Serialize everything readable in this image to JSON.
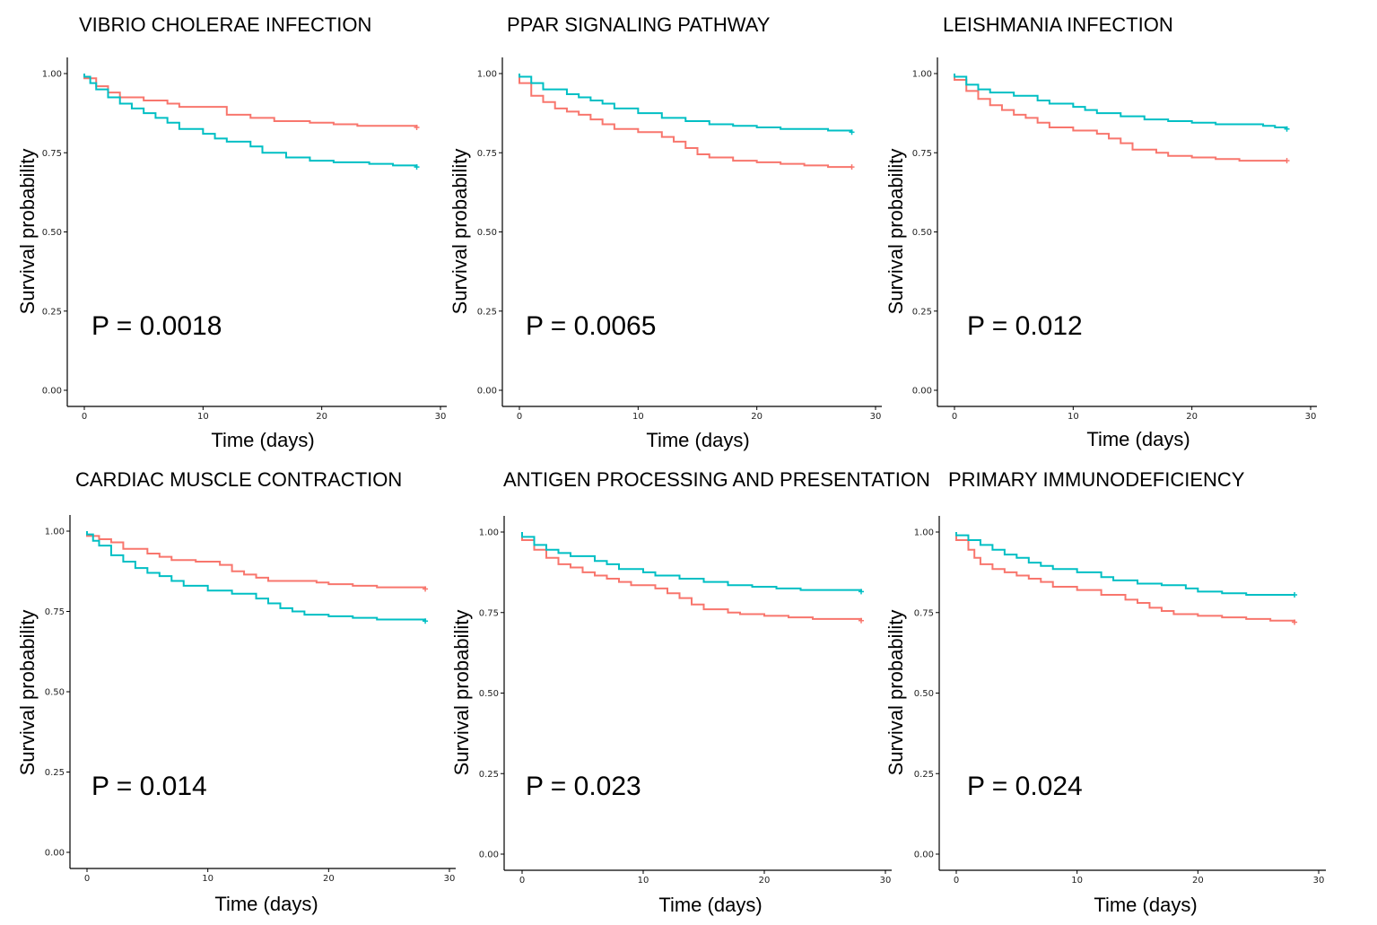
{
  "colors": {
    "red_group": "#F8766D",
    "cyan_group": "#00BFC4"
  },
  "chart_data": [
    {
      "type": "line",
      "title": "VIBRIO CHOLERAE INFECTION",
      "xlabel": "Time (days)",
      "ylabel": "Survival probability",
      "xlim": [
        0,
        30
      ],
      "ylim": [
        0,
        1
      ],
      "xticks": [
        "0",
        "10",
        "20",
        "30"
      ],
      "yticks": [
        "0.00",
        "0.25",
        "0.50",
        "0.75",
        "1.00"
      ],
      "annotation": "P = 0.0018",
      "series": [
        {
          "name": "red",
          "color": "#F8766D",
          "end": 28,
          "points": [
            [
              0,
              0.985
            ],
            [
              1,
              0.96
            ],
            [
              2,
              0.94
            ],
            [
              3,
              0.925
            ],
            [
              5,
              0.915
            ],
            [
              7,
              0.905
            ],
            [
              8,
              0.895
            ],
            [
              12,
              0.87
            ],
            [
              14,
              0.86
            ],
            [
              16,
              0.85
            ],
            [
              19,
              0.845
            ],
            [
              21,
              0.84
            ],
            [
              23,
              0.835
            ],
            [
              28,
              0.83
            ]
          ]
        },
        {
          "name": "cyan",
          "color": "#00BFC4",
          "end": 28,
          "points": [
            [
              0,
              0.99
            ],
            [
              0.5,
              0.97
            ],
            [
              1,
              0.95
            ],
            [
              2,
              0.925
            ],
            [
              3,
              0.905
            ],
            [
              4,
              0.89
            ],
            [
              5,
              0.875
            ],
            [
              6,
              0.86
            ],
            [
              7,
              0.845
            ],
            [
              8,
              0.825
            ],
            [
              10,
              0.81
            ],
            [
              11,
              0.795
            ],
            [
              12,
              0.785
            ],
            [
              14,
              0.77
            ],
            [
              15,
              0.75
            ],
            [
              17,
              0.735
            ],
            [
              19,
              0.725
            ],
            [
              21,
              0.72
            ],
            [
              24,
              0.715
            ],
            [
              26,
              0.71
            ],
            [
              28,
              0.705
            ]
          ]
        }
      ]
    },
    {
      "type": "line",
      "title": "PPAR SIGNALING PATHWAY",
      "xlabel": "Time (days)",
      "ylabel": "Survival probability",
      "xlim": [
        0,
        30
      ],
      "ylim": [
        0,
        1
      ],
      "xticks": [
        "0",
        "10",
        "20",
        "30"
      ],
      "yticks": [
        "0.00",
        "0.25",
        "0.50",
        "0.75",
        "1.00"
      ],
      "annotation": "P = 0.0065",
      "series": [
        {
          "name": "red",
          "color": "#F8766D",
          "end": 28,
          "points": [
            [
              0,
              0.97
            ],
            [
              1,
              0.93
            ],
            [
              2,
              0.91
            ],
            [
              3,
              0.89
            ],
            [
              4,
              0.88
            ],
            [
              5,
              0.87
            ],
            [
              6,
              0.855
            ],
            [
              7,
              0.84
            ],
            [
              8,
              0.825
            ],
            [
              10,
              0.815
            ],
            [
              12,
              0.8
            ],
            [
              13,
              0.785
            ],
            [
              14,
              0.765
            ],
            [
              15,
              0.745
            ],
            [
              16,
              0.735
            ],
            [
              18,
              0.725
            ],
            [
              20,
              0.72
            ],
            [
              22,
              0.715
            ],
            [
              24,
              0.71
            ],
            [
              26,
              0.705
            ],
            [
              28,
              0.705
            ]
          ]
        },
        {
          "name": "cyan",
          "color": "#00BFC4",
          "end": 28,
          "points": [
            [
              0,
              0.99
            ],
            [
              1,
              0.97
            ],
            [
              2,
              0.95
            ],
            [
              4,
              0.935
            ],
            [
              5,
              0.925
            ],
            [
              6,
              0.915
            ],
            [
              7,
              0.905
            ],
            [
              8,
              0.89
            ],
            [
              10,
              0.875
            ],
            [
              12,
              0.86
            ],
            [
              14,
              0.85
            ],
            [
              16,
              0.84
            ],
            [
              18,
              0.835
            ],
            [
              20,
              0.83
            ],
            [
              22,
              0.825
            ],
            [
              26,
              0.82
            ],
            [
              28,
              0.815
            ]
          ]
        }
      ]
    },
    {
      "type": "line",
      "title": "LEISHMANIA INFECTION",
      "xlabel": "Time (days)",
      "ylabel": "Survival probability",
      "xlim": [
        0,
        30
      ],
      "ylim": [
        0,
        1
      ],
      "xticks": [
        "0",
        "10",
        "20",
        "30"
      ],
      "yticks": [
        "0.00",
        "0.25",
        "0.50",
        "0.75",
        "1.00"
      ],
      "annotation": "P = 0.012",
      "series": [
        {
          "name": "red",
          "color": "#F8766D",
          "end": 28,
          "points": [
            [
              0,
              0.98
            ],
            [
              1,
              0.945
            ],
            [
              2,
              0.92
            ],
            [
              3,
              0.9
            ],
            [
              4,
              0.885
            ],
            [
              5,
              0.87
            ],
            [
              6,
              0.86
            ],
            [
              7,
              0.845
            ],
            [
              8,
              0.83
            ],
            [
              10,
              0.82
            ],
            [
              12,
              0.81
            ],
            [
              13,
              0.795
            ],
            [
              14,
              0.78
            ],
            [
              15,
              0.76
            ],
            [
              17,
              0.75
            ],
            [
              18,
              0.74
            ],
            [
              20,
              0.735
            ],
            [
              22,
              0.73
            ],
            [
              24,
              0.725
            ],
            [
              28,
              0.725
            ]
          ]
        },
        {
          "name": "cyan",
          "color": "#00BFC4",
          "end": 28,
          "points": [
            [
              0,
              0.99
            ],
            [
              1,
              0.965
            ],
            [
              2,
              0.95
            ],
            [
              3,
              0.94
            ],
            [
              5,
              0.93
            ],
            [
              7,
              0.915
            ],
            [
              8,
              0.905
            ],
            [
              10,
              0.895
            ],
            [
              11,
              0.885
            ],
            [
              12,
              0.875
            ],
            [
              14,
              0.865
            ],
            [
              16,
              0.855
            ],
            [
              18,
              0.85
            ],
            [
              20,
              0.845
            ],
            [
              22,
              0.84
            ],
            [
              26,
              0.835
            ],
            [
              27,
              0.83
            ],
            [
              28,
              0.825
            ]
          ]
        }
      ]
    },
    {
      "type": "line",
      "title": "CARDIAC MUSCLE CONTRACTION",
      "xlabel": "Time (days)",
      "ylabel": "Survival probability",
      "xlim": [
        0,
        30
      ],
      "ylim": [
        0,
        1
      ],
      "xticks": [
        "0",
        "10",
        "20",
        "30"
      ],
      "yticks": [
        "0.00",
        "0.25",
        "0.50",
        "0.75",
        "1.00"
      ],
      "annotation": "P = 0.014",
      "series": [
        {
          "name": "red",
          "color": "#F8766D",
          "end": 28,
          "points": [
            [
              0,
              0.985
            ],
            [
              1,
              0.975
            ],
            [
              2,
              0.965
            ],
            [
              3,
              0.945
            ],
            [
              5,
              0.93
            ],
            [
              6,
              0.92
            ],
            [
              7,
              0.91
            ],
            [
              9,
              0.905
            ],
            [
              11,
              0.895
            ],
            [
              12,
              0.875
            ],
            [
              13,
              0.865
            ],
            [
              14,
              0.855
            ],
            [
              15,
              0.845
            ],
            [
              17,
              0.845
            ],
            [
              19,
              0.84
            ],
            [
              20,
              0.835
            ],
            [
              22,
              0.83
            ],
            [
              24,
              0.825
            ],
            [
              28,
              0.82
            ]
          ]
        },
        {
          "name": "cyan",
          "color": "#00BFC4",
          "end": 28,
          "points": [
            [
              0,
              0.99
            ],
            [
              0.5,
              0.97
            ],
            [
              1,
              0.955
            ],
            [
              2,
              0.925
            ],
            [
              3,
              0.905
            ],
            [
              4,
              0.885
            ],
            [
              5,
              0.87
            ],
            [
              6,
              0.86
            ],
            [
              7,
              0.845
            ],
            [
              8,
              0.83
            ],
            [
              10,
              0.815
            ],
            [
              12,
              0.805
            ],
            [
              14,
              0.79
            ],
            [
              15,
              0.775
            ],
            [
              16,
              0.76
            ],
            [
              17,
              0.75
            ],
            [
              18,
              0.74
            ],
            [
              20,
              0.735
            ],
            [
              22,
              0.73
            ],
            [
              24,
              0.725
            ],
            [
              28,
              0.72
            ]
          ]
        }
      ]
    },
    {
      "type": "line",
      "title": "ANTIGEN PROCESSING AND PRESENTATION",
      "xlabel": "Time (days)",
      "ylabel": "Survival probability",
      "xlim": [
        0,
        30
      ],
      "ylim": [
        0,
        1
      ],
      "xticks": [
        "0",
        "10",
        "20",
        "30"
      ],
      "yticks": [
        "0.00",
        "0.25",
        "0.50",
        "0.75",
        "1.00"
      ],
      "annotation": "P = 0.023",
      "series": [
        {
          "name": "red",
          "color": "#F8766D",
          "end": 28,
          "points": [
            [
              0,
              0.975
            ],
            [
              1,
              0.945
            ],
            [
              2,
              0.92
            ],
            [
              3,
              0.9
            ],
            [
              4,
              0.89
            ],
            [
              5,
              0.875
            ],
            [
              6,
              0.865
            ],
            [
              7,
              0.855
            ],
            [
              8,
              0.845
            ],
            [
              9,
              0.835
            ],
            [
              11,
              0.825
            ],
            [
              12,
              0.81
            ],
            [
              13,
              0.795
            ],
            [
              14,
              0.775
            ],
            [
              15,
              0.76
            ],
            [
              17,
              0.75
            ],
            [
              18,
              0.745
            ],
            [
              20,
              0.74
            ],
            [
              22,
              0.735
            ],
            [
              24,
              0.73
            ],
            [
              28,
              0.725
            ]
          ]
        },
        {
          "name": "cyan",
          "color": "#00BFC4",
          "end": 28,
          "points": [
            [
              0,
              0.985
            ],
            [
              1,
              0.96
            ],
            [
              2,
              0.945
            ],
            [
              3,
              0.935
            ],
            [
              4,
              0.925
            ],
            [
              6,
              0.91
            ],
            [
              7,
              0.9
            ],
            [
              8,
              0.885
            ],
            [
              10,
              0.875
            ],
            [
              11,
              0.865
            ],
            [
              13,
              0.855
            ],
            [
              15,
              0.845
            ],
            [
              17,
              0.835
            ],
            [
              19,
              0.83
            ],
            [
              21,
              0.825
            ],
            [
              23,
              0.82
            ],
            [
              28,
              0.815
            ]
          ]
        }
      ]
    },
    {
      "type": "line",
      "title": "PRIMARY IMMUNODEFICIENCY",
      "xlabel": "Time (days)",
      "ylabel": "Survival probability",
      "xlim": [
        0,
        30
      ],
      "ylim": [
        0,
        1
      ],
      "xticks": [
        "0",
        "10",
        "20",
        "30"
      ],
      "yticks": [
        "0.00",
        "0.25",
        "0.50",
        "0.75",
        "1.00"
      ],
      "annotation": "P = 0.024",
      "series": [
        {
          "name": "red",
          "color": "#F8766D",
          "end": 28,
          "points": [
            [
              0,
              0.975
            ],
            [
              1,
              0.945
            ],
            [
              1.5,
              0.92
            ],
            [
              2,
              0.9
            ],
            [
              3,
              0.885
            ],
            [
              4,
              0.875
            ],
            [
              5,
              0.865
            ],
            [
              6,
              0.855
            ],
            [
              7,
              0.845
            ],
            [
              8,
              0.83
            ],
            [
              10,
              0.82
            ],
            [
              12,
              0.805
            ],
            [
              14,
              0.79
            ],
            [
              15,
              0.78
            ],
            [
              16,
              0.765
            ],
            [
              17,
              0.755
            ],
            [
              18,
              0.745
            ],
            [
              20,
              0.74
            ],
            [
              22,
              0.735
            ],
            [
              24,
              0.73
            ],
            [
              26,
              0.725
            ],
            [
              28,
              0.72
            ]
          ]
        },
        {
          "name": "cyan",
          "color": "#00BFC4",
          "end": 28,
          "points": [
            [
              0,
              0.99
            ],
            [
              1,
              0.975
            ],
            [
              2,
              0.96
            ],
            [
              3,
              0.945
            ],
            [
              4,
              0.93
            ],
            [
              5,
              0.92
            ],
            [
              6,
              0.905
            ],
            [
              7,
              0.895
            ],
            [
              8,
              0.885
            ],
            [
              10,
              0.875
            ],
            [
              12,
              0.86
            ],
            [
              13,
              0.85
            ],
            [
              15,
              0.84
            ],
            [
              17,
              0.835
            ],
            [
              19,
              0.825
            ],
            [
              20,
              0.815
            ],
            [
              22,
              0.81
            ],
            [
              24,
              0.805
            ],
            [
              28,
              0.805
            ]
          ]
        }
      ]
    }
  ]
}
